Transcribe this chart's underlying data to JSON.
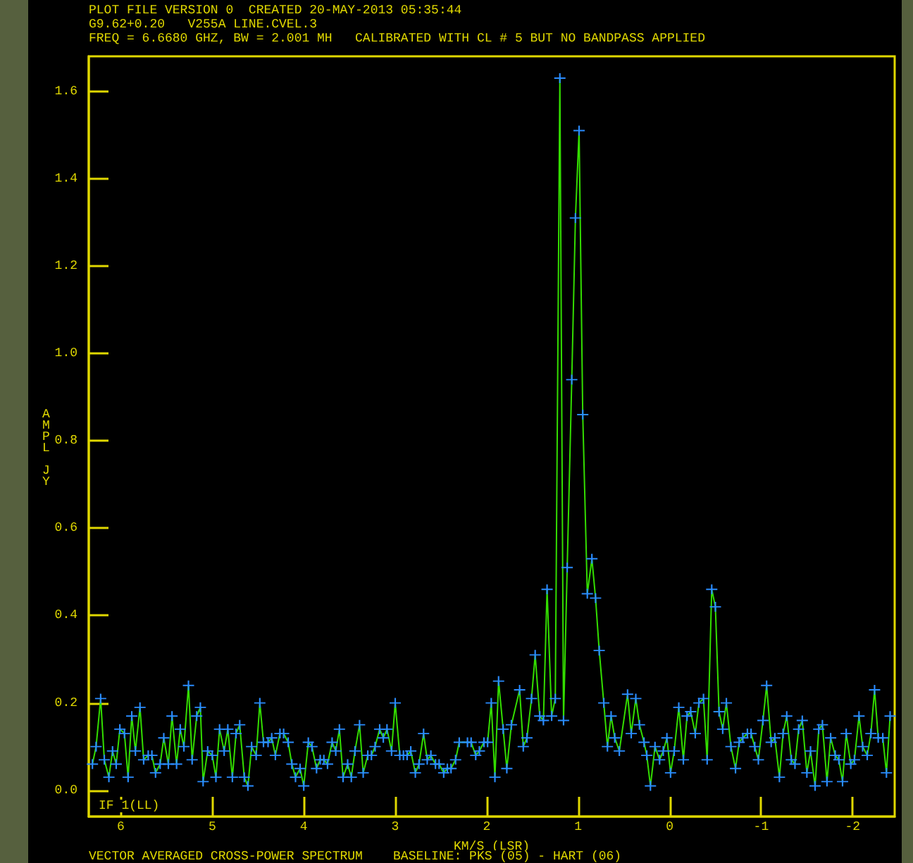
{
  "chart_data": {
    "type": "line",
    "title": "PLOT FILE VERSION 0  CREATED 20-MAY-2013 05:35:44",
    "subtitle": "G9.62+0.20   V255A LINE.CVEL.3",
    "xlabel": "KM/S (LSR)",
    "ylabel": "AMPL JY",
    "annotations": [
      "FREQ = 6.6680 GHZ, BW = 2.001 MH   CALIBRATED WITH CL # 5 BUT NO BANDPASS APPLIED",
      "IF 1(LL)",
      "VECTOR AVERAGED CROSS-POWER SPECTRUM    BASELINE: PKS (05) - HART (06)"
    ],
    "xlim": [
      6.35,
      -2.46
    ],
    "xticks": [
      6,
      5,
      4,
      3,
      2,
      1,
      0,
      -1,
      -2
    ],
    "ylim": [
      -0.06,
      1.68
    ],
    "yticks": [
      {
        "value": 0,
        "label": "0.0"
      },
      0.2,
      0.4,
      0.6,
      0.8,
      {
        "value": 1,
        "label": "1.0"
      },
      1.2,
      1.4,
      1.6
    ],
    "grid": false,
    "marker": "cross",
    "line_style": "solid",
    "series": [
      {
        "color": "#33dd00",
        "x": [
          6.31,
          6.27,
          6.22,
          6.18,
          6.13,
          6.09,
          6.05,
          6.01,
          5.96,
          5.92,
          5.88,
          5.84,
          5.79,
          5.75,
          5.7,
          5.66,
          5.62,
          5.57,
          5.53,
          5.48,
          5.44,
          5.39,
          5.35,
          5.31,
          5.26,
          5.22,
          5.17,
          5.13,
          5.1,
          5.05,
          5.0,
          4.96,
          4.92,
          4.87,
          4.83,
          4.78,
          4.74,
          4.7,
          4.65,
          4.61,
          4.57,
          4.52,
          4.48,
          4.44,
          4.39,
          4.35,
          4.31,
          4.26,
          4.22,
          4.17,
          4.13,
          4.09,
          4.04,
          4.0,
          3.95,
          3.91,
          3.86,
          3.82,
          3.78,
          3.74,
          3.69,
          3.65,
          3.61,
          3.57,
          3.52,
          3.48,
          3.44,
          3.39,
          3.35,
          3.3,
          3.26,
          3.22,
          3.17,
          3.13,
          3.09,
          3.04,
          3.0,
          2.95,
          2.91,
          2.87,
          2.83,
          2.78,
          2.74,
          2.69,
          2.65,
          2.61,
          2.56,
          2.52,
          2.47,
          2.43,
          2.39,
          2.34,
          2.3,
          2.21,
          2.17,
          2.12,
          2.08,
          2.03,
          1.99,
          1.95,
          1.91,
          1.87,
          1.82,
          1.78,
          1.73,
          1.64,
          1.6,
          1.56,
          1.51,
          1.47,
          1.42,
          1.38,
          1.34,
          1.29,
          1.25,
          1.2,
          1.16,
          1.12,
          1.07,
          1.03,
          0.99,
          0.95,
          0.9,
          0.85,
          0.81,
          0.77,
          0.72,
          0.68,
          0.64,
          0.6,
          0.55,
          0.46,
          0.42,
          0.37,
          0.33,
          0.28,
          0.25,
          0.21,
          0.16,
          0.11,
          0.07,
          0.03,
          -0.01,
          -0.05,
          -0.1,
          -0.15,
          -0.19,
          -0.23,
          -0.28,
          -0.32,
          -0.37,
          -0.41,
          -0.46,
          -0.5,
          -0.54,
          -0.58,
          -0.62,
          -0.67,
          -0.72,
          -0.76,
          -0.8,
          -0.85,
          -0.89,
          -0.93,
          -0.97,
          -1.02,
          -1.06,
          -1.11,
          -1.15,
          -1.2,
          -1.24,
          -1.28,
          -1.33,
          -1.37,
          -1.41,
          -1.45,
          -1.5,
          -1.54,
          -1.59,
          -1.63,
          -1.67,
          -1.72,
          -1.76,
          -1.81,
          -1.85,
          -1.89,
          -1.93,
          -1.98,
          -2.02,
          -2.07,
          -2.11,
          -2.16,
          -2.2,
          -2.24,
          -2.28,
          -2.33,
          -2.37,
          -2.41
        ],
        "values": [
          0.06,
          0.1,
          0.21,
          0.07,
          0.03,
          0.09,
          0.06,
          0.14,
          0.13,
          0.03,
          0.17,
          0.09,
          0.19,
          0.07,
          0.08,
          0.08,
          0.04,
          0.06,
          0.12,
          0.06,
          0.17,
          0.06,
          0.14,
          0.1,
          0.24,
          0.07,
          0.17,
          0.19,
          0.02,
          0.09,
          0.08,
          0.03,
          0.14,
          0.09,
          0.14,
          0.03,
          0.13,
          0.15,
          0.03,
          0.01,
          0.1,
          0.08,
          0.2,
          0.11,
          0.11,
          0.12,
          0.08,
          0.13,
          0.13,
          0.11,
          0.06,
          0.03,
          0.05,
          0.01,
          0.11,
          0.1,
          0.05,
          0.07,
          0.07,
          0.06,
          0.11,
          0.09,
          0.14,
          0.03,
          0.06,
          0.03,
          0.09,
          0.15,
          0.04,
          0.08,
          0.08,
          0.1,
          0.14,
          0.12,
          0.14,
          0.09,
          0.2,
          0.08,
          0.08,
          0.08,
          0.09,
          0.04,
          0.06,
          0.13,
          0.07,
          0.08,
          0.06,
          0.06,
          0.04,
          0.05,
          0.05,
          0.07,
          0.11,
          0.11,
          0.11,
          0.08,
          0.09,
          0.11,
          0.11,
          0.2,
          0.03,
          0.25,
          0.14,
          0.05,
          0.15,
          0.23,
          0.1,
          0.12,
          0.21,
          0.31,
          0.17,
          0.16,
          0.46,
          0.17,
          0.21,
          1.63,
          0.16,
          0.51,
          0.94,
          1.31,
          1.51,
          0.86,
          0.45,
          0.53,
          0.44,
          0.32,
          0.2,
          0.1,
          0.17,
          0.12,
          0.09,
          0.22,
          0.13,
          0.21,
          0.15,
          0.11,
          0.08,
          0.01,
          0.1,
          0.07,
          0.09,
          0.12,
          0.04,
          0.09,
          0.19,
          0.07,
          0.17,
          0.18,
          0.13,
          0.2,
          0.21,
          0.07,
          0.46,
          0.42,
          0.18,
          0.14,
          0.2,
          0.1,
          0.05,
          0.11,
          0.12,
          0.13,
          0.13,
          0.1,
          0.07,
          0.16,
          0.24,
          0.11,
          0.12,
          0.03,
          0.13,
          0.17,
          0.07,
          0.06,
          0.14,
          0.16,
          0.04,
          0.09,
          0.01,
          0.14,
          0.15,
          0.02,
          0.12,
          0.08,
          0.07,
          0.02,
          0.13,
          0.06,
          0.07,
          0.17,
          0.1,
          0.08,
          0.13,
          0.23,
          0.12,
          0.12,
          0.04,
          0.17
        ]
      }
    ]
  }
}
